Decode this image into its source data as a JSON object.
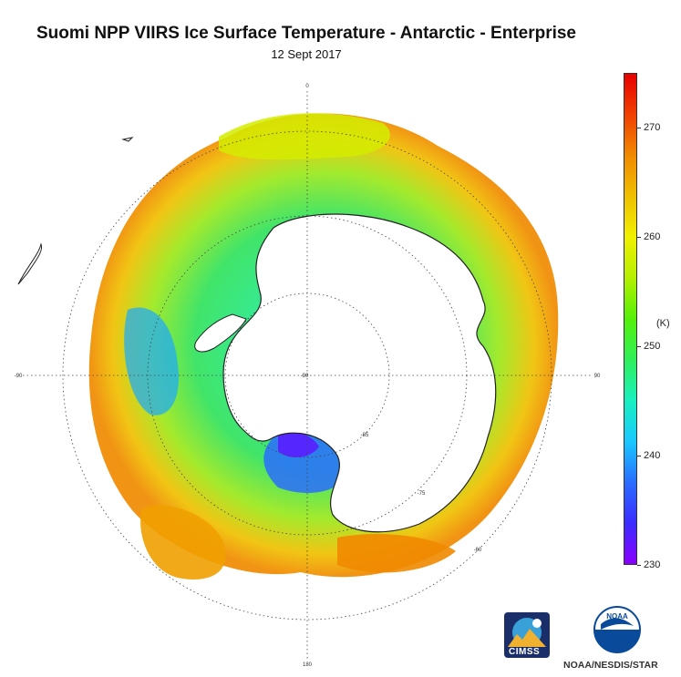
{
  "title": "Suomi NPP VIIRS Ice Surface Temperature - Antarctic - Enterprise",
  "subtitle": "12 Sept 2017",
  "colorbar": {
    "unit": "(K)",
    "ticks": [
      "270",
      "260",
      "250",
      "240",
      "230"
    ],
    "min": 230,
    "max": 275,
    "colors": [
      "#8a00ff",
      "#3a2cff",
      "#2a6dff",
      "#19c8ff",
      "#18f0c0",
      "#2ff05a",
      "#54f00a",
      "#b4f000",
      "#f0f000",
      "#f0c000",
      "#f08a00",
      "#f04000",
      "#e80000"
    ]
  },
  "grid_labels": {
    "lon_0": "0",
    "lon_90": "90",
    "lon_180": "180",
    "lon_w90": "-90",
    "lat_60": "-60",
    "lat_75": "-75",
    "lat_85": "-85",
    "lat_90": "-90"
  },
  "logos": {
    "cimss": "CIMSS",
    "noaa": "NOAA",
    "credit": "NOAA/NESDIS/STAR"
  }
}
